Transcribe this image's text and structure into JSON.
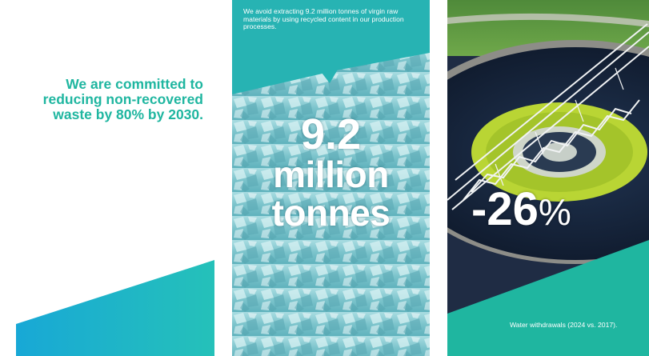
{
  "left_panel": {
    "headline": "We are committed to reducing non-recovered waste by 80% by 2030.",
    "colors": {
      "text": "#1fb6a0",
      "wedge": "#1fb7c6"
    }
  },
  "middle_panel": {
    "caption": "We avoid extracting 9.2 million tonnes of virgin raw materials by using recycled content in our production processes.",
    "stat_number": "9.2",
    "stat_unit_line1": "million",
    "stat_unit_line2": "tonnes",
    "image": "recycled glass cullet crystals",
    "colors": {
      "banner": "#27b3b3",
      "crystals": "#8fcfd6"
    }
  },
  "right_panel": {
    "stat_value": "-26",
    "stat_unit": "%",
    "caption": "Water withdrawals (2024 vs. 2017).",
    "image": "circular water clarifier tank with steel bridge",
    "colors": {
      "banner": "#1fb6a0",
      "water": "#0f1c33",
      "algae": "#b9d534"
    }
  }
}
